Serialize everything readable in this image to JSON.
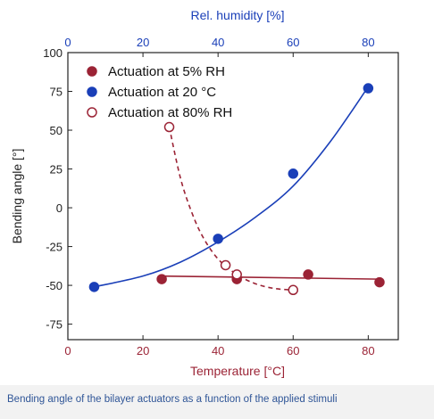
{
  "caption": "Bending angle of the bilayer actuators as a function of the applied stimuli",
  "chart_data": {
    "type": "scatter",
    "xlabel": "Temperature [°C]",
    "x2label": "Rel. humidity [%]",
    "ylabel": "Bending angle [°]",
    "xlim": [
      0,
      88
    ],
    "x2lim": [
      0,
      88
    ],
    "ylim": [
      -85,
      100
    ],
    "xticks": [
      0,
      20,
      40,
      60,
      80
    ],
    "x2ticks": [
      0,
      20,
      40,
      60,
      80
    ],
    "yticks": [
      100,
      75,
      50,
      25,
      0,
      -25,
      -50,
      -75
    ],
    "grid": false,
    "legend_position": "top-left",
    "colors": {
      "red": "#9b2335",
      "blue": "#1a3fb8",
      "black": "#222222"
    },
    "series": [
      {
        "name": "Actuation at 5% RH",
        "axis": "temperature",
        "marker": "filled",
        "color": "#9b2335",
        "points": [
          [
            25,
            -46
          ],
          [
            45,
            -46
          ],
          [
            64,
            -43
          ],
          [
            83,
            -48
          ]
        ],
        "fit": {
          "style": "solid",
          "x": [
            25,
            83
          ],
          "y": [
            -44,
            -46
          ]
        }
      },
      {
        "name": "Actuation at 20 °C",
        "axis": "humidity",
        "marker": "filled",
        "color": "#1a3fb8",
        "points": [
          [
            7,
            -51
          ],
          [
            40,
            -20
          ],
          [
            60,
            22
          ],
          [
            80,
            77
          ]
        ],
        "fit": {
          "style": "solid",
          "x": [
            7,
            20,
            30,
            40,
            50,
            60,
            70,
            80
          ],
          "y": [
            -51,
            -44,
            -35,
            -22,
            -6,
            14,
            43,
            78
          ]
        }
      },
      {
        "name": "Actuation at 80% RH",
        "axis": "temperature",
        "marker": "open",
        "color": "#9b2335",
        "points": [
          [
            27,
            52
          ],
          [
            42,
            -37
          ],
          [
            45,
            -43
          ],
          [
            60,
            -53
          ]
        ],
        "fit": {
          "style": "dashed",
          "x": [
            27,
            30,
            33,
            36,
            40,
            45,
            50,
            55,
            60
          ],
          "y": [
            52,
            19,
            -3,
            -19,
            -33,
            -43,
            -49,
            -52,
            -53
          ]
        }
      }
    ]
  }
}
